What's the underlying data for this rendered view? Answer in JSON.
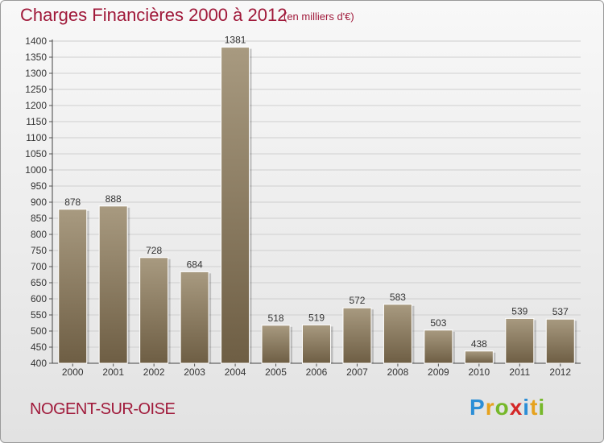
{
  "header": {
    "title": "Charges Financières 2000 à 2012",
    "subtitle": "(en milliers d'€)"
  },
  "footer": {
    "commune": "NOGENT-SUR-OISE",
    "logo_text": "Proxiti"
  },
  "colors": {
    "accent": "#a0193a",
    "bar_top": "#a89a80",
    "bar_bottom": "#6e5e44"
  },
  "chart_data": {
    "type": "bar",
    "categories": [
      "2000",
      "2001",
      "2002",
      "2003",
      "2004",
      "2005",
      "2006",
      "2007",
      "2008",
      "2009",
      "2010",
      "2011",
      "2012"
    ],
    "values": [
      878,
      888,
      728,
      684,
      1381,
      518,
      519,
      572,
      583,
      503,
      438,
      539,
      537
    ],
    "ylim": [
      400,
      1400
    ],
    "yticks": [
      400,
      450,
      500,
      550,
      600,
      650,
      700,
      750,
      800,
      850,
      900,
      950,
      1000,
      1050,
      1100,
      1150,
      1200,
      1250,
      1300,
      1350,
      1400
    ],
    "grid": true
  }
}
